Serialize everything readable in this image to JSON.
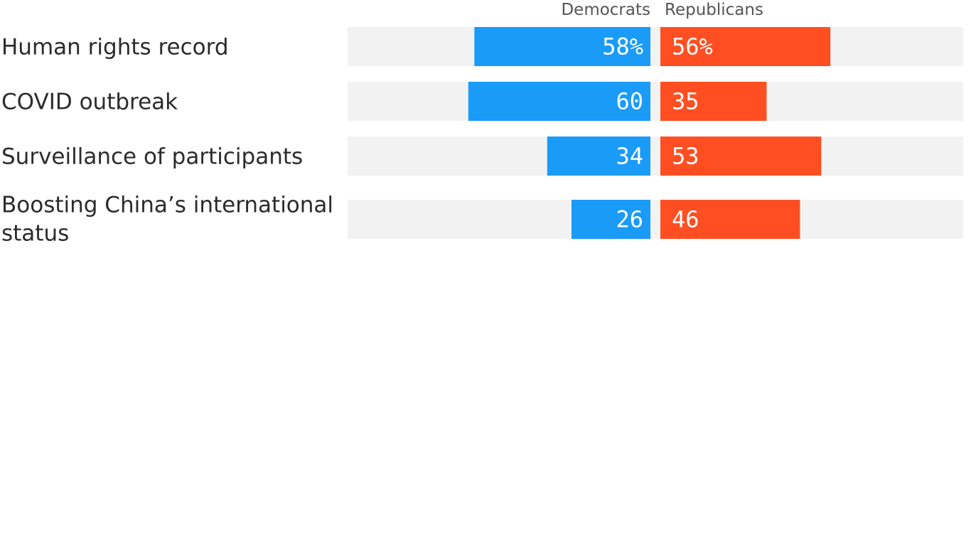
{
  "chart_data": {
    "type": "bar",
    "title": "",
    "xlabel": "",
    "ylabel": "",
    "xlim": [
      0,
      100
    ],
    "categories": [
      [
        "Human rights record"
      ],
      [
        "COVID outbreak"
      ],
      [
        "Surveillance of participants"
      ],
      [
        "Boosting China’s international",
        "status"
      ]
    ],
    "series": [
      {
        "name": "Democrats",
        "values": [
          58,
          60,
          34,
          26
        ],
        "labels": [
          "58%",
          "60",
          "34",
          "26"
        ],
        "color": "#1a9bf8"
      },
      {
        "name": "Republicans",
        "values": [
          56,
          35,
          53,
          46
        ],
        "labels": [
          "56%",
          "35",
          "53",
          "46"
        ],
        "color": "#ff4f22"
      }
    ],
    "track_color": "#f2f2f2",
    "legend": "top-center"
  }
}
